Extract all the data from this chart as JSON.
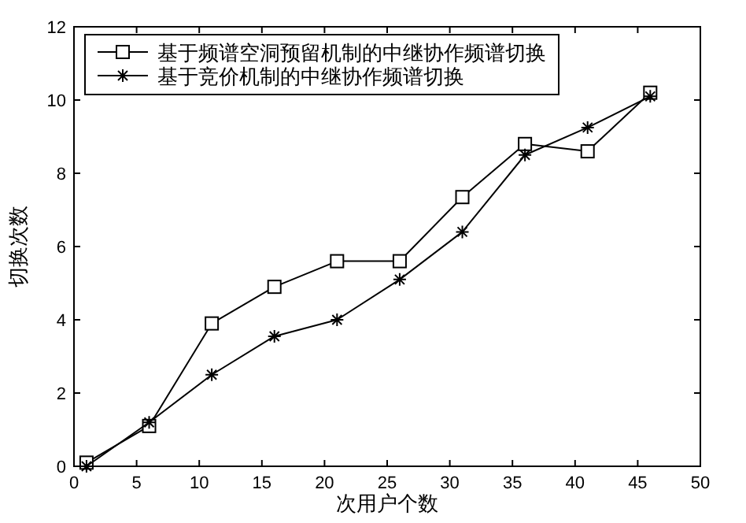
{
  "chart_data": {
    "type": "line",
    "xlabel": "次用户个数",
    "ylabel": "切换次数",
    "xlim": [
      0,
      50
    ],
    "ylim": [
      0,
      12
    ],
    "xticks": [
      0,
      5,
      10,
      15,
      20,
      25,
      30,
      35,
      40,
      45,
      50
    ],
    "yticks": [
      0,
      2,
      4,
      6,
      8,
      10,
      12
    ],
    "grid": false,
    "legend": "top left",
    "series": [
      {
        "name": "基于频谱空洞预留机制的中继协作频谱切换",
        "color": "#000000",
        "marker": "square",
        "x": [
          1,
          6,
          11,
          16,
          21,
          26,
          31,
          36,
          41,
          46
        ],
        "values": [
          0.1,
          1.1,
          3.9,
          4.9,
          5.6,
          5.6,
          7.35,
          8.8,
          8.6,
          10.2
        ]
      },
      {
        "name": "基于竞价机制的中继协作频谱切换",
        "color": "#000000",
        "marker": "cross",
        "x": [
          1,
          6,
          11,
          16,
          21,
          26,
          31,
          36,
          41,
          46
        ],
        "values": [
          0,
          1.2,
          2.5,
          3.55,
          4.0,
          5.1,
          6.4,
          8.5,
          9.25,
          10.1
        ]
      }
    ]
  }
}
